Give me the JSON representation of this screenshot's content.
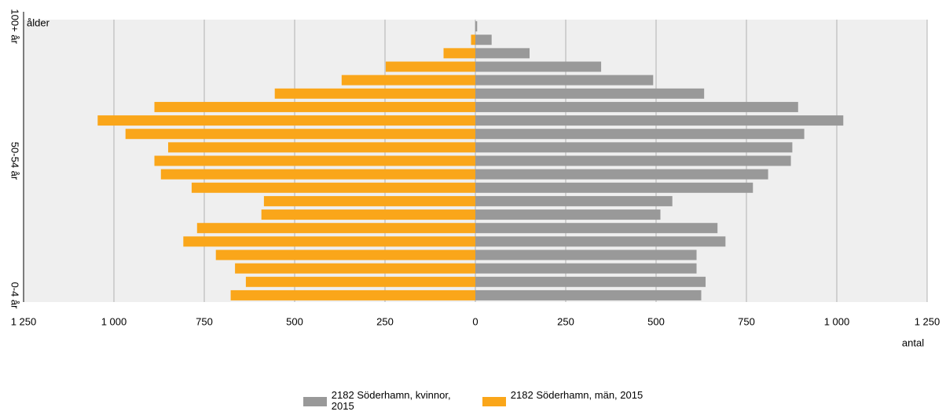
{
  "chart_data": {
    "type": "pyramid",
    "y_axis_label": "ålder",
    "x_axis_label": "antal",
    "categories": [
      "100+ år",
      null,
      null,
      null,
      null,
      null,
      null,
      null,
      null,
      null,
      "50-54 år",
      null,
      null,
      null,
      null,
      null,
      null,
      null,
      null,
      null,
      "0-4 år"
    ],
    "series": [
      {
        "name": "2182 Söderhamn, kvinnor, 2015",
        "color": "#999999",
        "values": [
          5,
          45,
          150,
          348,
          492,
          633,
          893,
          1018,
          910,
          877,
          873,
          810,
          768,
          545,
          512,
          670,
          692,
          612,
          612,
          637,
          625
        ]
      },
      {
        "name": "2182 Söderhamn, män, 2015",
        "color": "#faa61a",
        "values": [
          0,
          -12,
          -88,
          -248,
          -370,
          -555,
          -888,
          -1045,
          -968,
          -850,
          -888,
          -870,
          -785,
          -585,
          -592,
          -770,
          -808,
          -718,
          -665,
          -635,
          -677
        ]
      }
    ],
    "xlim": [
      -1250,
      1250
    ],
    "xticks": [
      {
        "value": -1250,
        "label": "1 250"
      },
      {
        "value": -1000,
        "label": "1 000"
      },
      {
        "value": -750,
        "label": "750"
      },
      {
        "value": -500,
        "label": "500"
      },
      {
        "value": -250,
        "label": "250"
      },
      0,
      250,
      500,
      750,
      {
        "value": 1000,
        "label": "1 000"
      },
      {
        "value": 1250,
        "label": "1 250"
      }
    ],
    "grid": true
  }
}
